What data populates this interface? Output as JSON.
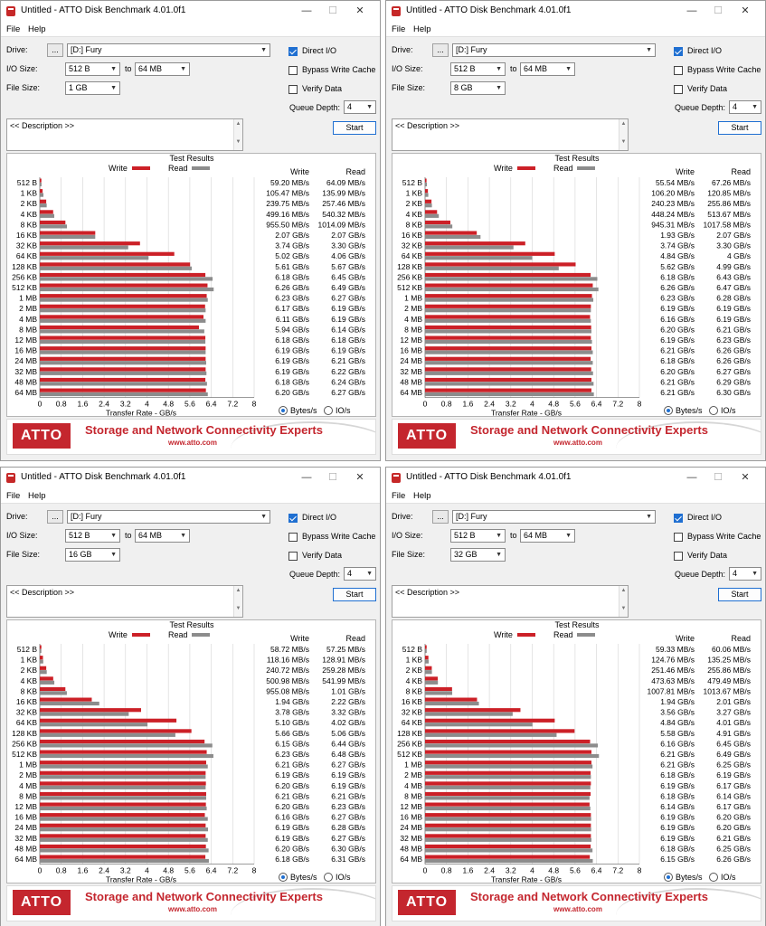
{
  "app": {
    "title": "Untitled - ATTO Disk Benchmark 4.01.0f1",
    "minimize": "—",
    "maximize": "☐",
    "close": "✕",
    "menu": [
      "File",
      "Help"
    ]
  },
  "labels": {
    "drive": "Drive:",
    "browse": "...",
    "io_size": "I/O Size:",
    "to": "to",
    "file_size": "File Size:",
    "direct_io": "Direct I/O",
    "bypass_cache": "Bypass Write Cache",
    "verify_data": "Verify Data",
    "queue_depth": "Queue Depth:",
    "description": "<< Description >>",
    "start": "Start",
    "test_results": "Test Results",
    "legend_write": "Write",
    "legend_read": "Read",
    "col_write": "Write",
    "col_read": "Read",
    "x_axis": "Transfer Rate - GB/s",
    "bytes_per_s": "Bytes/s",
    "io_per_s": "IO/s",
    "banner_logo": "ATTO",
    "banner_slogan": "Storage and Network Connectivity Experts",
    "banner_url": "www.atto.com"
  },
  "colors": {
    "write": "#cc2027",
    "read": "#8c8c8c",
    "accent": "#1f6fd1"
  },
  "chart_axis": {
    "xlim": [
      0,
      8
    ],
    "ticks": [
      "0",
      "0.8",
      "1.6",
      "2.4",
      "3.2",
      "4",
      "4.8",
      "5.6",
      "6.4",
      "7.2",
      "8"
    ],
    "categories": [
      "512 B",
      "1 KB",
      "2 KB",
      "4 KB",
      "8 KB",
      "16 KB",
      "32 KB",
      "64 KB",
      "128 KB",
      "256 KB",
      "512 KB",
      "1 MB",
      "2 MB",
      "4 MB",
      "8 MB",
      "12 MB",
      "16 MB",
      "24 MB",
      "32 MB",
      "48 MB",
      "64 MB"
    ]
  },
  "windows": [
    {
      "drive": "[D:] Fury",
      "io_from": "512 B",
      "io_to": "64 MB",
      "file_size": "1 GB",
      "direct_io": true,
      "bypass_cache": false,
      "verify_data": false,
      "queue_depth": "4",
      "write_text": [
        "59.20 MB/s",
        "105.47 MB/s",
        "239.75 MB/s",
        "499.16 MB/s",
        "955.50 MB/s",
        "2.07 GB/s",
        "3.74 GB/s",
        "5.02 GB/s",
        "5.61 GB/s",
        "6.18 GB/s",
        "6.26 GB/s",
        "6.23 GB/s",
        "6.17 GB/s",
        "6.11 GB/s",
        "5.94 GB/s",
        "6.18 GB/s",
        "6.19 GB/s",
        "6.19 GB/s",
        "6.19 GB/s",
        "6.18 GB/s",
        "6.20 GB/s"
      ],
      "read_text": [
        "64.09 MB/s",
        "135.99 MB/s",
        "257.46 MB/s",
        "540.32 MB/s",
        "1014.09 MB/s",
        "2.07 GB/s",
        "3.30 GB/s",
        "4.06 GB/s",
        "5.67 GB/s",
        "6.45 GB/s",
        "6.49 GB/s",
        "6.27 GB/s",
        "6.19 GB/s",
        "6.19 GB/s",
        "6.14 GB/s",
        "6.18 GB/s",
        "6.19 GB/s",
        "6.21 GB/s",
        "6.22 GB/s",
        "6.24 GB/s",
        "6.27 GB/s"
      ],
      "write_gbps": [
        0.0592,
        0.10547,
        0.23975,
        0.49916,
        0.9555,
        2.07,
        3.74,
        5.02,
        5.61,
        6.18,
        6.26,
        6.23,
        6.17,
        6.11,
        5.94,
        6.18,
        6.19,
        6.19,
        6.19,
        6.18,
        6.2
      ],
      "read_gbps": [
        0.06409,
        0.13599,
        0.25746,
        0.54032,
        1.01409,
        2.07,
        3.3,
        4.06,
        5.67,
        6.45,
        6.49,
        6.27,
        6.19,
        6.19,
        6.14,
        6.18,
        6.19,
        6.21,
        6.22,
        6.24,
        6.27
      ]
    },
    {
      "drive": "[D:] Fury",
      "io_from": "512 B",
      "io_to": "64 MB",
      "file_size": "8 GB",
      "direct_io": true,
      "bypass_cache": false,
      "verify_data": false,
      "queue_depth": "4",
      "write_text": [
        "55.54 MB/s",
        "106.20 MB/s",
        "240.23 MB/s",
        "448.24 MB/s",
        "945.31 MB/s",
        "1.93 GB/s",
        "3.74 GB/s",
        "4.84 GB/s",
        "5.62 GB/s",
        "6.18 GB/s",
        "6.26 GB/s",
        "6.23 GB/s",
        "6.19 GB/s",
        "6.16 GB/s",
        "6.20 GB/s",
        "6.19 GB/s",
        "6.21 GB/s",
        "6.18 GB/s",
        "6.20 GB/s",
        "6.21 GB/s",
        "6.21 GB/s"
      ],
      "read_text": [
        "67.26 MB/s",
        "120.85 MB/s",
        "255.86 MB/s",
        "513.67 MB/s",
        "1017.58 MB/s",
        "2.07 GB/s",
        "3.30 GB/s",
        "4 GB/s",
        "4.99 GB/s",
        "6.43 GB/s",
        "6.47 GB/s",
        "6.28 GB/s",
        "6.19 GB/s",
        "6.19 GB/s",
        "6.21 GB/s",
        "6.23 GB/s",
        "6.26 GB/s",
        "6.26 GB/s",
        "6.27 GB/s",
        "6.29 GB/s",
        "6.30 GB/s"
      ],
      "write_gbps": [
        0.05554,
        0.1062,
        0.24023,
        0.44824,
        0.94531,
        1.93,
        3.74,
        4.84,
        5.62,
        6.18,
        6.26,
        6.23,
        6.19,
        6.16,
        6.2,
        6.19,
        6.21,
        6.18,
        6.2,
        6.21,
        6.21
      ],
      "read_gbps": [
        0.06726,
        0.12085,
        0.25586,
        0.51367,
        1.01758,
        2.07,
        3.3,
        4.0,
        4.99,
        6.43,
        6.47,
        6.28,
        6.19,
        6.19,
        6.21,
        6.23,
        6.26,
        6.26,
        6.27,
        6.29,
        6.3
      ]
    },
    {
      "drive": "[D:] Fury",
      "io_from": "512 B",
      "io_to": "64 MB",
      "file_size": "16 GB",
      "direct_io": true,
      "bypass_cache": false,
      "verify_data": false,
      "queue_depth": "4",
      "write_text": [
        "58.72 MB/s",
        "118.16 MB/s",
        "240.72 MB/s",
        "500.98 MB/s",
        "955.08 MB/s",
        "1.94 GB/s",
        "3.78 GB/s",
        "5.10 GB/s",
        "5.66 GB/s",
        "6.15 GB/s",
        "6.23 GB/s",
        "6.21 GB/s",
        "6.19 GB/s",
        "6.20 GB/s",
        "6.21 GB/s",
        "6.20 GB/s",
        "6.16 GB/s",
        "6.19 GB/s",
        "6.19 GB/s",
        "6.20 GB/s",
        "6.18 GB/s"
      ],
      "read_text": [
        "57.25 MB/s",
        "128.91 MB/s",
        "259.28 MB/s",
        "541.99 MB/s",
        "1.01 GB/s",
        "2.22 GB/s",
        "3.32 GB/s",
        "4.02 GB/s",
        "5.06 GB/s",
        "6.44 GB/s",
        "6.48 GB/s",
        "6.27 GB/s",
        "6.19 GB/s",
        "6.19 GB/s",
        "6.21 GB/s",
        "6.23 GB/s",
        "6.27 GB/s",
        "6.28 GB/s",
        "6.27 GB/s",
        "6.30 GB/s",
        "6.31 GB/s"
      ],
      "write_gbps": [
        0.05872,
        0.11816,
        0.24072,
        0.50098,
        0.95508,
        1.94,
        3.78,
        5.1,
        5.66,
        6.15,
        6.23,
        6.21,
        6.19,
        6.2,
        6.21,
        6.2,
        6.16,
        6.19,
        6.19,
        6.2,
        6.18
      ],
      "read_gbps": [
        0.05725,
        0.12891,
        0.25928,
        0.54199,
        1.01,
        2.22,
        3.32,
        4.02,
        5.06,
        6.44,
        6.48,
        6.27,
        6.19,
        6.19,
        6.21,
        6.23,
        6.27,
        6.28,
        6.27,
        6.3,
        6.31
      ]
    },
    {
      "drive": "[D:] Fury",
      "io_from": "512 B",
      "io_to": "64 MB",
      "file_size": "32 GB",
      "direct_io": true,
      "bypass_cache": false,
      "verify_data": false,
      "queue_depth": "4",
      "write_text": [
        "59.33 MB/s",
        "124.76 MB/s",
        "251.46 MB/s",
        "473.63 MB/s",
        "1007.81 MB/s",
        "1.94 GB/s",
        "3.56 GB/s",
        "4.84 GB/s",
        "5.58 GB/s",
        "6.16 GB/s",
        "6.21 GB/s",
        "6.21 GB/s",
        "6.18 GB/s",
        "6.19 GB/s",
        "6.18 GB/s",
        "6.14 GB/s",
        "6.19 GB/s",
        "6.19 GB/s",
        "6.19 GB/s",
        "6.18 GB/s",
        "6.15 GB/s"
      ],
      "read_text": [
        "60.06 MB/s",
        "135.25 MB/s",
        "255.86 MB/s",
        "479.49 MB/s",
        "1013.67 MB/s",
        "2.01 GB/s",
        "3.27 GB/s",
        "4.01 GB/s",
        "4.91 GB/s",
        "6.45 GB/s",
        "6.49 GB/s",
        "6.25 GB/s",
        "6.19 GB/s",
        "6.17 GB/s",
        "6.14 GB/s",
        "6.17 GB/s",
        "6.20 GB/s",
        "6.20 GB/s",
        "6.21 GB/s",
        "6.25 GB/s",
        "6.26 GB/s"
      ],
      "write_gbps": [
        0.05933,
        0.12476,
        0.25146,
        0.47363,
        1.00781,
        1.94,
        3.56,
        4.84,
        5.58,
        6.16,
        6.21,
        6.21,
        6.18,
        6.19,
        6.18,
        6.14,
        6.19,
        6.19,
        6.19,
        6.18,
        6.15
      ],
      "read_gbps": [
        0.06006,
        0.13525,
        0.25586,
        0.47949,
        1.01367,
        2.01,
        3.27,
        4.01,
        4.91,
        6.45,
        6.49,
        6.25,
        6.19,
        6.17,
        6.14,
        6.17,
        6.2,
        6.2,
        6.21,
        6.25,
        6.26
      ]
    }
  ]
}
